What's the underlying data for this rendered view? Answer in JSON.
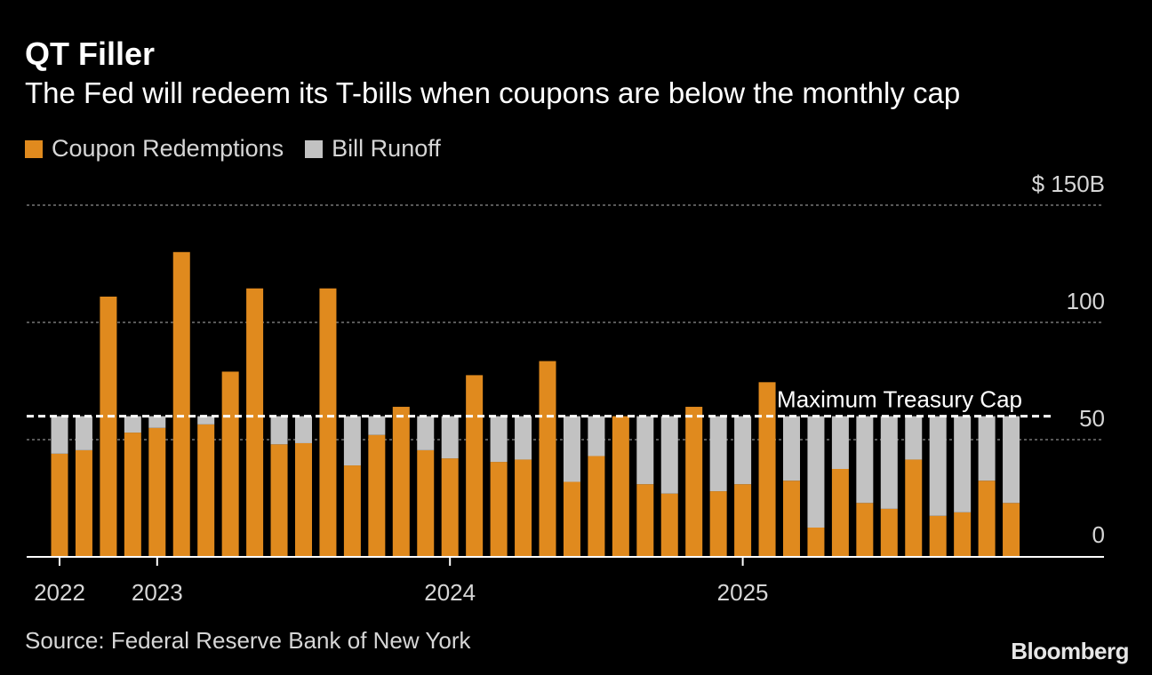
{
  "title": "QT Filler",
  "subtitle": "The Fed will redeem its T-bills when coupons are below the monthly cap",
  "legend": [
    {
      "label": "Coupon Redemptions",
      "color": "#e08a1e"
    },
    {
      "label": "Bill Runoff",
      "color": "#c2c2c2"
    }
  ],
  "source": "Source: Federal Reserve Bank of New York",
  "brand": "Bloomberg",
  "colors": {
    "coupon": "#e08a1e",
    "bill": "#c2c2c2",
    "grid": "#777777",
    "axis": "#ffffff",
    "text": "#d6d6d6"
  },
  "chart_data": {
    "type": "bar",
    "stacked": true,
    "ylim": [
      0,
      150
    ],
    "yticks": [
      {
        "value": 0,
        "label": "0"
      },
      {
        "value": 50,
        "label": "50"
      },
      {
        "value": 100,
        "label": "100"
      },
      {
        "value": 150,
        "label": "$ 150B"
      }
    ],
    "xticks": [
      {
        "index": 0,
        "label": "2022"
      },
      {
        "index": 4,
        "label": "2023"
      },
      {
        "index": 16,
        "label": "2024"
      },
      {
        "index": 28,
        "label": "2025"
      }
    ],
    "cap": {
      "value": 60,
      "label": "Maximum Treasury Cap"
    },
    "grid": true,
    "legend_position": "top-left",
    "series": [
      {
        "name": "Coupon Redemptions",
        "values": [
          44,
          45.5,
          111,
          53,
          55,
          130,
          56.5,
          79,
          114.5,
          48,
          48.5,
          114.5,
          39,
          52,
          64,
          45.5,
          42,
          77.5,
          40.5,
          41.5,
          83.5,
          32,
          43,
          60,
          31,
          27,
          64,
          28,
          31,
          74.5,
          32.5,
          12.5,
          37.5,
          23,
          20.5,
          41.5,
          17.5,
          19,
          32.5,
          23
        ]
      },
      {
        "name": "Bill Runoff",
        "values": [
          16,
          14.5,
          0,
          7,
          5,
          0,
          3.5,
          0,
          0,
          12,
          11.5,
          0,
          21,
          8,
          0,
          14.5,
          18,
          0,
          19.5,
          18.5,
          0,
          28,
          17,
          0,
          29,
          33,
          0,
          32,
          29,
          0,
          27.5,
          47.5,
          22.5,
          37,
          39.5,
          18.5,
          42.5,
          41,
          27.5,
          37
        ]
      }
    ]
  }
}
